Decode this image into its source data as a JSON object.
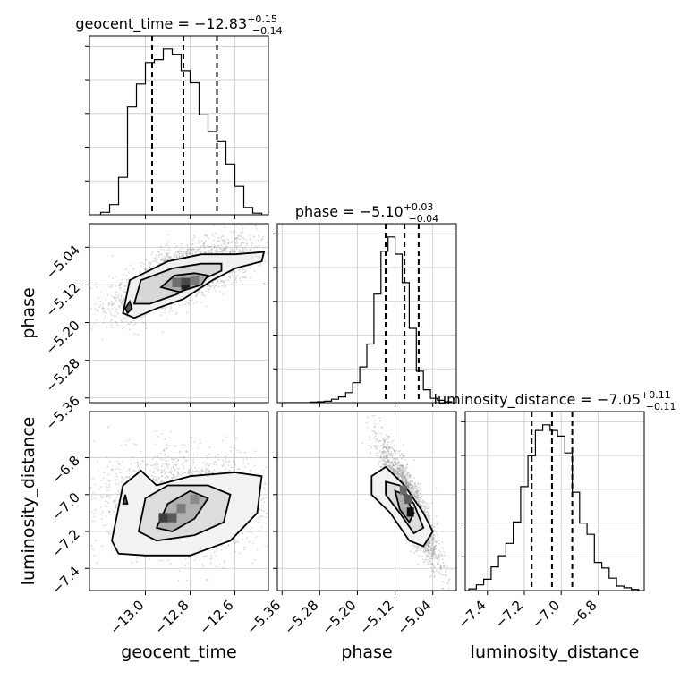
{
  "chart_data": {
    "type": "corner",
    "parameters": [
      "geocent_time",
      "phase",
      "luminosity_distance"
    ],
    "titles": [
      {
        "param": "geocent_time",
        "prefix": "geocent_time = ",
        "value": "−12.83",
        "plus": "+0.15",
        "minus": "−0.14"
      },
      {
        "param": "phase",
        "prefix": "phase = ",
        "value": "−5.10",
        "plus": "+0.03",
        "minus": "−0.04"
      },
      {
        "param": "luminosity_distance",
        "prefix": "luminosity_distance = ",
        "value": "−7.05",
        "plus": "+0.11",
        "minus": "−0.11"
      }
    ],
    "axis_labels": {
      "x": [
        "geocent_time",
        "phase",
        "luminosity_distance"
      ],
      "y": [
        "phase",
        "luminosity_distance"
      ]
    },
    "ranges": {
      "geocent_time": [
        -13.25,
        -12.45
      ],
      "phase": [
        -5.37,
        -4.99
      ],
      "luminosity_distance": [
        -7.52,
        -6.55
      ]
    },
    "ticks": {
      "geocent_time": [
        -13.0,
        -12.8,
        -12.6
      ],
      "phase": [
        -5.36,
        -5.28,
        -5.2,
        -5.12,
        -5.04
      ],
      "luminosity_distance": [
        -7.4,
        -7.2,
        -7.0,
        -6.8
      ]
    },
    "tick_labels": {
      "geocent_time": [
        "−13.0",
        "−12.8",
        "−12.6"
      ],
      "phase": [
        "−5.36",
        "−5.28",
        "−5.20",
        "−5.12",
        "−5.04"
      ],
      "luminosity_distance": [
        "−7.4",
        "−7.2",
        "−7.0",
        "−6.8"
      ]
    },
    "quantiles": {
      "geocent_time": [
        -12.97,
        -12.83,
        -12.68
      ],
      "phase": [
        -5.14,
        -5.1,
        -5.07
      ],
      "luminosity_distance": [
        -7.16,
        -7.05,
        -6.94
      ]
    },
    "histograms": {
      "geocent_time": {
        "bins": [
          -13.2,
          -13.16,
          -13.12,
          -13.08,
          -13.04,
          -13.0,
          -12.96,
          -12.92,
          -12.88,
          -12.84,
          -12.8,
          -12.76,
          -12.72,
          -12.68,
          -12.64,
          -12.6,
          -12.56,
          -12.52,
          -12.48
        ],
        "counts": [
          6,
          25,
          92,
          265,
          322,
          375,
          382,
          408,
          395,
          355,
          325,
          246,
          205,
          180,
          125,
          70,
          18,
          4
        ]
      },
      "phase": {
        "bins": [
          -5.36,
          -5.345,
          -5.33,
          -5.315,
          -5.3,
          -5.285,
          -5.27,
          -5.255,
          -5.24,
          -5.225,
          -5.21,
          -5.195,
          -5.18,
          -5.165,
          -5.15,
          -5.135,
          -5.12,
          -5.105,
          -5.09,
          -5.075,
          -5.06,
          -5.045,
          -5.03,
          -5.015,
          -5.0
        ],
        "counts": [
          0,
          0,
          0,
          0,
          2,
          3,
          5,
          12,
          20,
          35,
          70,
          125,
          205,
          380,
          530,
          580,
          520,
          420,
          260,
          110,
          45,
          15,
          8,
          3
        ]
      },
      "luminosity_distance": {
        "bins": [
          -7.5,
          -7.46,
          -7.42,
          -7.38,
          -7.34,
          -7.3,
          -7.26,
          -7.22,
          -7.18,
          -7.14,
          -7.1,
          -7.06,
          -7.02,
          -6.98,
          -6.94,
          -6.9,
          -6.86,
          -6.82,
          -6.78,
          -6.74,
          -6.7,
          -6.66,
          -6.62,
          -6.58
        ],
        "counts": [
          3,
          10,
          20,
          42,
          62,
          84,
          122,
          185,
          240,
          285,
          295,
          285,
          275,
          245,
          175,
          120,
          100,
          50,
          40,
          22,
          8,
          5,
          2
        ]
      }
    },
    "grid": true,
    "legend": "none"
  }
}
